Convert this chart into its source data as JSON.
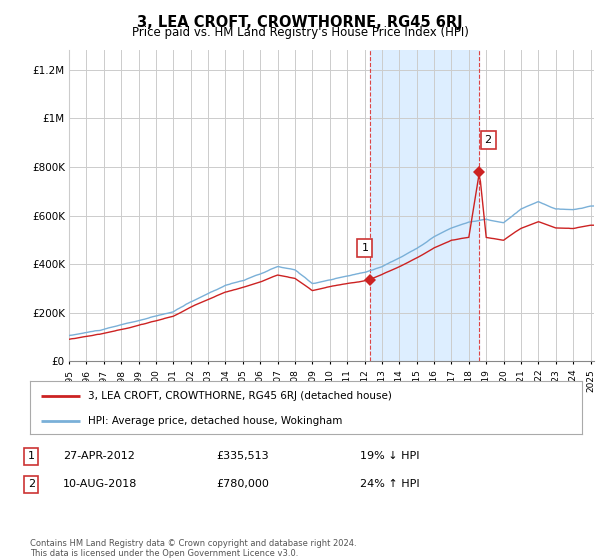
{
  "title": "3, LEA CROFT, CROWTHORNE, RG45 6RJ",
  "subtitle": "Price paid vs. HM Land Registry's House Price Index (HPI)",
  "background_color": "#ffffff",
  "plot_bg_color": "#ffffff",
  "shaded_region_color": "#ddeeff",
  "shaded_x1": 2012.32,
  "shaded_x2": 2018.61,
  "ylabel_ticks": [
    "£0",
    "£200K",
    "£400K",
    "£600K",
    "£800K",
    "£1M",
    "£1.2M"
  ],
  "ytick_values": [
    0,
    200000,
    400000,
    600000,
    800000,
    1000000,
    1200000
  ],
  "ylim": [
    0,
    1280000
  ],
  "xlim_start": 1995.0,
  "xlim_end": 2025.2,
  "grid_color": "#cccccc",
  "hpi_line_color": "#7ab0d8",
  "price_line_color": "#cc2222",
  "transaction1_x": 2012.32,
  "transaction1_y": 335513,
  "transaction2_x": 2018.61,
  "transaction2_y": 780000,
  "legend_label1": "3, LEA CROFT, CROWTHORNE, RG45 6RJ (detached house)",
  "legend_label2": "HPI: Average price, detached house, Wokingham",
  "table_rows": [
    {
      "num": "1",
      "date": "27-APR-2012",
      "price": "£335,513",
      "pct": "19% ↓ HPI"
    },
    {
      "num": "2",
      "date": "10-AUG-2018",
      "price": "£780,000",
      "pct": "24% ↑ HPI"
    }
  ],
  "footer": "Contains HM Land Registry data © Crown copyright and database right 2024.\nThis data is licensed under the Open Government Licence v3.0."
}
